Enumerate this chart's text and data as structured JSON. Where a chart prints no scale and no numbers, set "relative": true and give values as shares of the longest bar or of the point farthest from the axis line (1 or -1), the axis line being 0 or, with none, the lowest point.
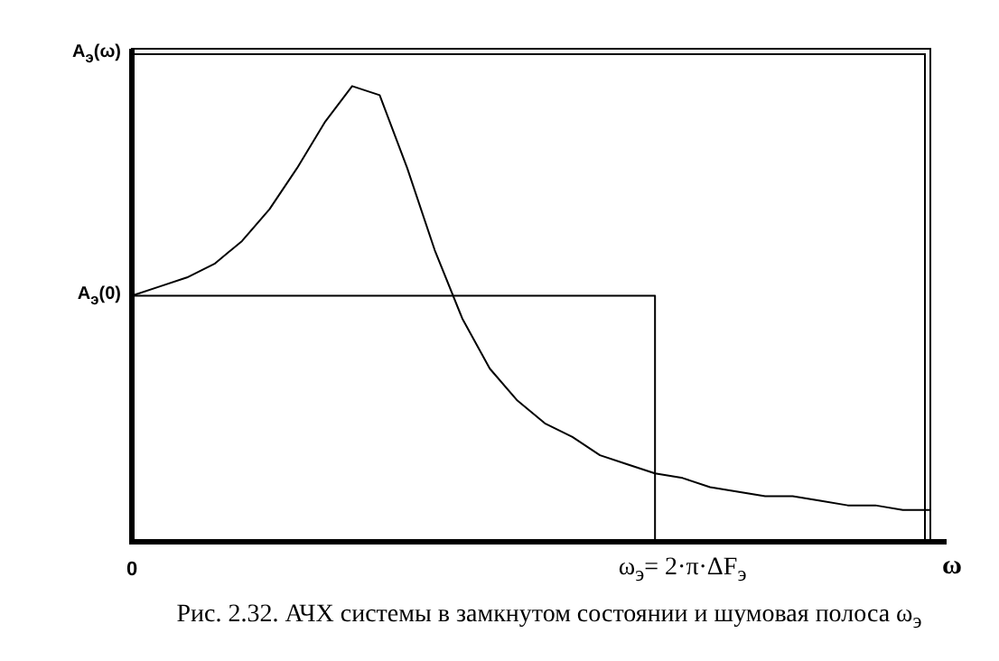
{
  "chart_data": {
    "type": "line",
    "title": "Рис. 2.32. АЧХ системы в замкнутом состоянии и шумовая полоса ω$_{э}$",
    "xlabel": "ω",
    "ylabel": "A$_{э}$(ω)",
    "relative": true,
    "categories": [
      "0",
      null,
      null,
      null,
      null,
      null,
      null,
      null,
      null,
      null,
      null,
      null,
      null,
      null,
      null,
      null,
      null,
      null,
      null,
      null,
      "ω$_{э}$= 2·π·ΔF$_{э}$",
      null,
      null,
      null,
      null,
      null,
      null,
      null,
      null,
      null
    ],
    "annotations": [
      "A$_{э}$(0)"
    ],
    "series": [
      {
        "color": "#000000",
        "values": [
          0.54,
          0.56,
          0.58,
          0.61,
          0.66,
          0.73,
          0.82,
          0.92,
          1,
          0.98,
          0.82,
          0.64,
          0.49,
          0.38,
          0.31,
          0.26,
          0.23,
          0.19,
          0.17,
          0.15,
          0.14,
          0.12,
          0.11,
          0.1,
          0.1,
          0.09,
          0.08,
          0.08,
          0.07,
          0.07
        ]
      },
      {
        "type": "step",
        "color": "#000000",
        "values": [
          0.54,
          0.54,
          0.54,
          0.54,
          0.54,
          0.54,
          0.54,
          0.54,
          0.54,
          0.54,
          0.54,
          0.54,
          0.54,
          0.54,
          0.54,
          0.54,
          0.54,
          0.54,
          0.54,
          0.54,
          0,
          null,
          null,
          null,
          null,
          null,
          null,
          null,
          null,
          null
        ]
      }
    ],
    "marker": "none",
    "line_style": "solid"
  }
}
